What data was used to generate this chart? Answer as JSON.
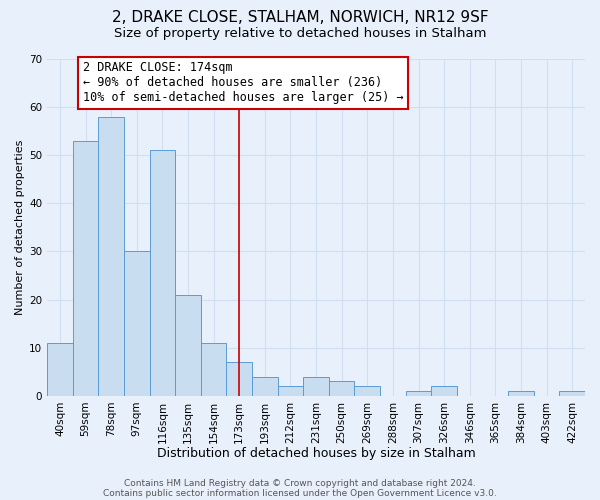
{
  "title": "2, DRAKE CLOSE, STALHAM, NORWICH, NR12 9SF",
  "subtitle": "Size of property relative to detached houses in Stalham",
  "xlabel": "Distribution of detached houses by size in Stalham",
  "ylabel": "Number of detached properties",
  "footer_line1": "Contains HM Land Registry data © Crown copyright and database right 2024.",
  "footer_line2": "Contains public sector information licensed under the Open Government Licence v3.0.",
  "bin_labels": [
    "40sqm",
    "59sqm",
    "78sqm",
    "97sqm",
    "116sqm",
    "135sqm",
    "154sqm",
    "173sqm",
    "193sqm",
    "212sqm",
    "231sqm",
    "250sqm",
    "269sqm",
    "288sqm",
    "307sqm",
    "326sqm",
    "346sqm",
    "365sqm",
    "384sqm",
    "403sqm",
    "422sqm"
  ],
  "bar_values": [
    11,
    53,
    58,
    30,
    51,
    21,
    11,
    7,
    4,
    2,
    4,
    3,
    2,
    0,
    1,
    2,
    0,
    0,
    1,
    0,
    1
  ],
  "bar_color": "#c9ddf0",
  "bar_edge_color": "#5b9bd5",
  "background_color": "#e8f1fb",
  "vline_x_index": 7,
  "vline_color": "#cc0000",
  "annotation_line1": "2 DRAKE CLOSE: 174sqm",
  "annotation_line2": "← 90% of detached houses are smaller (236)",
  "annotation_line3": "10% of semi-detached houses are larger (25) →",
  "annotation_box_edge_color": "#cc0000",
  "annotation_box_face_color": "#ffffff",
  "ylim": [
    0,
    70
  ],
  "yticks": [
    0,
    10,
    20,
    30,
    40,
    50,
    60,
    70
  ],
  "grid_color": "#d0dfef",
  "title_fontsize": 11,
  "subtitle_fontsize": 9.5,
  "xlabel_fontsize": 9,
  "ylabel_fontsize": 8,
  "tick_fontsize": 7.5,
  "annotation_fontsize": 8.5,
  "footer_fontsize": 6.5
}
